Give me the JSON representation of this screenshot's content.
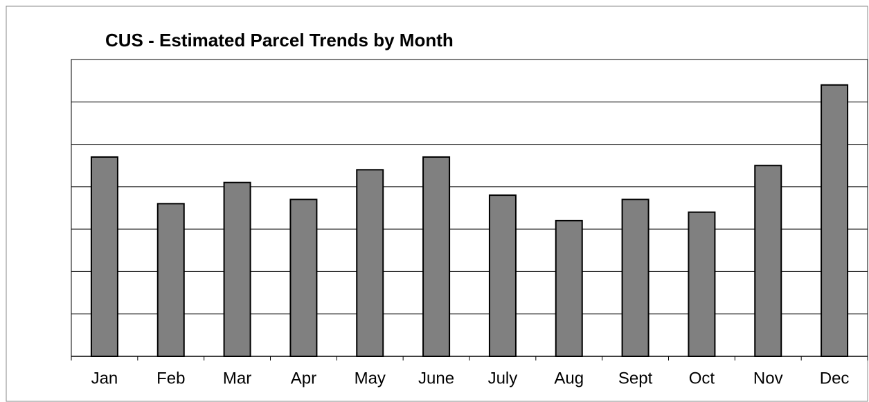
{
  "chart_data": {
    "type": "bar",
    "title": "CUS - Estimated Parcel Trends by Month",
    "categories": [
      "Jan",
      "Feb",
      "Mar",
      "Apr",
      "May",
      "June",
      "July",
      "Aug",
      "Sept",
      "Oct",
      "Nov",
      "Dec"
    ],
    "values": [
      4.7,
      3.6,
      4.1,
      3.7,
      4.4,
      4.7,
      3.8,
      3.2,
      3.7,
      3.4,
      4.5,
      6.4
    ],
    "color": "#808080",
    "ylim": [
      0,
      7
    ],
    "yticks": [
      0,
      1,
      2,
      3,
      4,
      5,
      6,
      7
    ],
    "grid": true
  }
}
